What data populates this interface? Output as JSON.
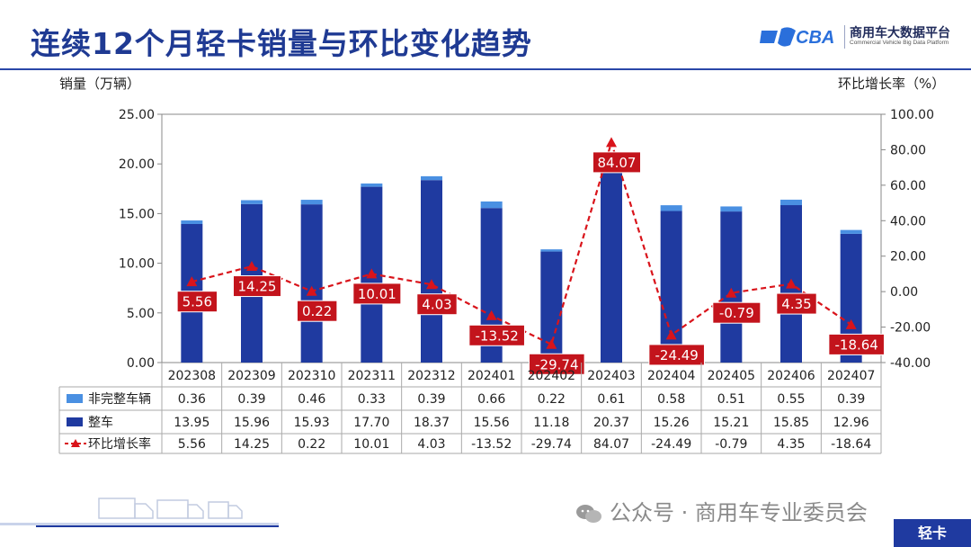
{
  "page": {
    "title": "连续12个月轻卡销量与环比变化趋势",
    "logo_text_cn": "商用车大数据平台",
    "logo_text_en": "Commercial Vehicle Big Data Platform",
    "watermark": "公众号 · 商用车专业委员会",
    "tag": "轻卡"
  },
  "chart_data": {
    "type": "bar",
    "ylabel": "销量（万辆）",
    "y2label": "环比增长率（%）",
    "ylim": [
      0,
      25
    ],
    "y2lim": [
      -40,
      100
    ],
    "yticks": [
      "0.00",
      "5.00",
      "10.00",
      "15.00",
      "20.00",
      "25.00"
    ],
    "y2ticks": [
      "-40.00",
      "-20.00",
      "0.00",
      "20.00",
      "40.00",
      "60.00",
      "80.00",
      "100.00"
    ],
    "categories": [
      "202308",
      "202309",
      "202310",
      "202311",
      "202312",
      "202401",
      "202402",
      "202403",
      "202404",
      "202405",
      "202406",
      "202407"
    ],
    "series": [
      {
        "name": "非完整车辆",
        "type": "bar-stack",
        "color": "#4a90e2",
        "values": [
          0.36,
          0.39,
          0.46,
          0.33,
          0.39,
          0.66,
          0.22,
          0.61,
          0.58,
          0.51,
          0.55,
          0.39
        ],
        "labels": [
          "0.36",
          "0.39",
          "0.46",
          "0.33",
          "0.39",
          "0.66",
          "0.22",
          "0.61",
          "0.58",
          "0.51",
          "0.55",
          "0.39"
        ]
      },
      {
        "name": "整车",
        "type": "bar-stack",
        "color": "#1f3aa0",
        "values": [
          13.95,
          15.96,
          15.93,
          17.7,
          18.37,
          15.56,
          11.18,
          20.37,
          15.26,
          15.21,
          15.85,
          12.96
        ],
        "labels": [
          "13.95",
          "15.96",
          "15.93",
          "17.70",
          "18.37",
          "15.56",
          "11.18",
          "20.37",
          "15.26",
          "15.21",
          "15.85",
          "12.96"
        ]
      },
      {
        "name": "环比增长率",
        "type": "line",
        "axis": "right",
        "color": "#d9141b",
        "values": [
          5.56,
          14.25,
          0.22,
          10.01,
          4.03,
          -13.52,
          -29.74,
          84.07,
          -24.49,
          -0.79,
          4.35,
          -18.64
        ],
        "labels": [
          "5.56",
          "14.25",
          "0.22",
          "10.01",
          "4.03",
          "-13.52",
          "-29.74",
          "84.07",
          "-24.49",
          "-0.79",
          "4.35",
          "-18.64"
        ]
      }
    ],
    "grid": false,
    "legend": "table-below"
  }
}
